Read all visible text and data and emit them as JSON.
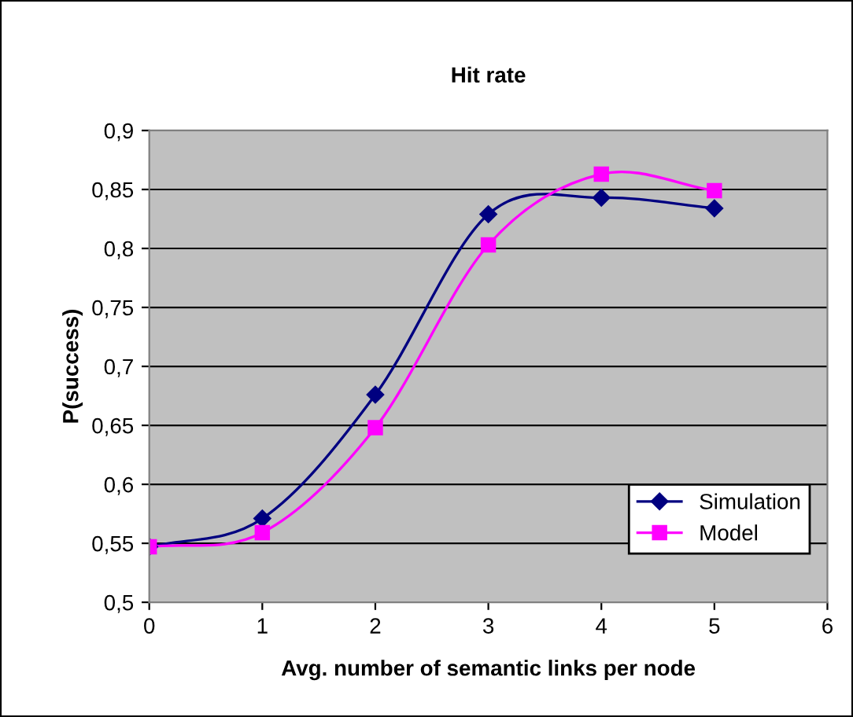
{
  "chart_data": {
    "type": "line",
    "title": "Hit rate",
    "xlabel": "Avg. number of semantic links per node",
    "ylabel": "P(success)",
    "x": [
      0,
      1,
      2,
      3,
      4,
      5
    ],
    "series": [
      {
        "name": "Simulation",
        "color": "#000080",
        "marker": "diamond",
        "values": [
          0.547,
          0.571,
          0.676,
          0.829,
          0.843,
          0.834
        ]
      },
      {
        "name": "Model",
        "color": "#ff00ff",
        "marker": "square",
        "values": [
          0.547,
          0.559,
          0.648,
          0.803,
          0.863,
          0.849
        ]
      }
    ],
    "xlim": [
      0,
      6
    ],
    "xticks": [
      0,
      1,
      2,
      3,
      4,
      5,
      6
    ],
    "ylim": [
      0.5,
      0.9
    ],
    "yticks": [
      {
        "value": 0.5,
        "label": "0,5"
      },
      {
        "value": 0.55,
        "label": "0,55"
      },
      {
        "value": 0.6,
        "label": "0,6"
      },
      {
        "value": 0.65,
        "label": "0,65"
      },
      {
        "value": 0.7,
        "label": "0,7"
      },
      {
        "value": 0.75,
        "label": "0,75"
      },
      {
        "value": 0.8,
        "label": "0,8"
      },
      {
        "value": 0.85,
        "label": "0,85"
      },
      {
        "value": 0.9,
        "label": "0,9"
      }
    ],
    "grid": "y",
    "legend": "bottom right",
    "line_style": "solid"
  }
}
